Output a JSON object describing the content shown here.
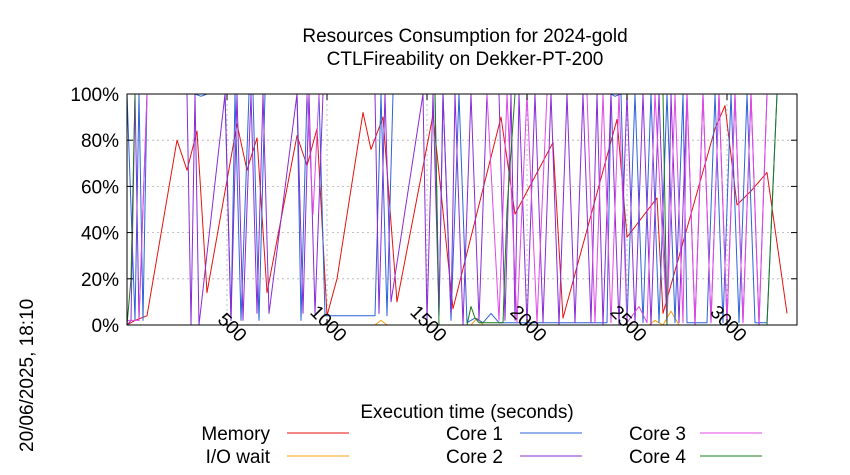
{
  "chart_data": {
    "type": "line",
    "title_line1": "Resources Consumption for 2024-gold",
    "title_line2": "CTLFireability on Dekker-PT-200",
    "xlabel": "Execution time (seconds)",
    "side_label": "20/06/2025, 18:10",
    "xlim": [
      0,
      3350
    ],
    "ylim": [
      0,
      100
    ],
    "x_ticks": [
      500,
      1000,
      1500,
      2000,
      2500,
      3000
    ],
    "x_tick_labels": [
      "500",
      "1000",
      "1500",
      "2000",
      "2500",
      "3000"
    ],
    "y_ticks": [
      0,
      20,
      40,
      60,
      80,
      100
    ],
    "y_tick_labels": [
      "0%",
      "20%",
      "40%",
      "60%",
      "80%",
      "100%"
    ],
    "grid": true,
    "legend_position": "bottom",
    "series": [
      {
        "name": "Memory",
        "color": "#e8120c",
        "x": [
          0,
          40,
          100,
          250,
          300,
          350,
          400,
          550,
          600,
          650,
          700,
          850,
          900,
          950,
          1000,
          1050,
          1180,
          1220,
          1280,
          1350,
          1530,
          1630,
          1870,
          1940,
          2130,
          2180,
          2450,
          2500,
          2650,
          2680,
          2940,
          2990,
          3050,
          3120,
          3200,
          3300
        ],
        "values": [
          0,
          2,
          4,
          80,
          67,
          84,
          14,
          87,
          67,
          81,
          14,
          82,
          69,
          85,
          4,
          20,
          92,
          76,
          90,
          10,
          91,
          7,
          90,
          48,
          79,
          3,
          89,
          38,
          55,
          5,
          85,
          95,
          52,
          58,
          66,
          5
        ]
      },
      {
        "name": "I/O wait",
        "color": "#f5a00a",
        "x": [
          0,
          1240,
          1270,
          1300,
          1500,
          1720,
          1750,
          1780,
          2540,
          2610,
          2640,
          2680,
          2720,
          2760,
          3300
        ],
        "values": [
          0,
          0,
          2,
          0,
          0,
          0,
          3,
          0,
          0,
          0,
          2,
          0,
          6,
          0,
          0
        ]
      },
      {
        "name": "Core 1",
        "color": "#2b63d8",
        "x": [
          0,
          40,
          60,
          80,
          100,
          310,
          340,
          370,
          400,
          490,
          520,
          540,
          570,
          610,
          630,
          660,
          690,
          850,
          870,
          900,
          960,
          990,
          1240,
          1270,
          1300,
          1330,
          1540,
          1560,
          1580,
          1620,
          1660,
          1700,
          1740,
          1780,
          1820,
          1860,
          1900,
          2400,
          2420,
          2440,
          2470,
          2500,
          2540,
          2580,
          2620,
          2660,
          2700,
          2740,
          2780,
          2800,
          2860,
          2900,
          2940,
          2980,
          3020,
          3060,
          3100,
          3140,
          3200,
          3250,
          3300
        ],
        "values": [
          100,
          2,
          100,
          2,
          100,
          100,
          100,
          99,
          100,
          100,
          2,
          100,
          2,
          100,
          100,
          2,
          100,
          100,
          2,
          100,
          100,
          4,
          4,
          100,
          4,
          100,
          100,
          4,
          100,
          2,
          100,
          1,
          3,
          1,
          5,
          1,
          1,
          1,
          100,
          99,
          100,
          1,
          100,
          1,
          100,
          1,
          100,
          1,
          100,
          1,
          1,
          1,
          100,
          1,
          100,
          1,
          100,
          1,
          1,
          100,
          100
        ]
      },
      {
        "name": "Core 2",
        "color": "#8a2bd6",
        "x": [
          0,
          20,
          40,
          60,
          100,
          300,
          320,
          340,
          360,
          490,
          520,
          550,
          580,
          620,
          650,
          680,
          710,
          850,
          880,
          910,
          940,
          980,
          1240,
          1260,
          1290,
          1320,
          1480,
          1500,
          1530,
          1560,
          1580,
          1620,
          1640,
          1680,
          1720,
          1760,
          1800,
          1860,
          1890,
          1920,
          1940,
          1960,
          2000,
          2040,
          2080,
          2120,
          2160,
          2200,
          2240,
          2280,
          2320,
          2350,
          2380,
          2420,
          2460,
          2500,
          2540,
          2580,
          2620,
          2660,
          2700,
          2720,
          2760,
          2800,
          2840,
          2880,
          2920,
          2960,
          3000,
          3040,
          3080,
          3120,
          3160,
          3200,
          3250,
          3300
        ],
        "values": [
          0,
          2,
          100,
          2,
          100,
          100,
          0,
          100,
          0,
          100,
          2,
          100,
          2,
          100,
          5,
          100,
          5,
          100,
          5,
          100,
          5,
          100,
          100,
          5,
          100,
          10,
          100,
          2,
          100,
          5,
          100,
          5,
          100,
          0,
          100,
          2,
          100,
          100,
          2,
          100,
          2,
          100,
          0,
          100,
          1,
          100,
          0,
          100,
          1,
          100,
          1,
          100,
          0,
          100,
          0,
          100,
          1,
          100,
          0,
          100,
          0,
          100,
          1,
          100,
          0,
          100,
          1,
          100,
          1,
          100,
          1,
          100,
          0,
          100,
          100,
          100
        ]
      },
      {
        "name": "Core 3",
        "color": "#e048e6",
        "x": [
          0,
          60,
          100,
          300,
          340,
          380,
          900,
          930,
          960,
          1500,
          1540,
          1580,
          1640,
          1700,
          1740,
          1800,
          1860,
          1900,
          1950,
          2000,
          2050,
          2100,
          2300,
          2340,
          2380,
          2420,
          2460,
          2500,
          2560,
          2600,
          2640,
          2700,
          2740,
          2780,
          2800,
          2840,
          2880,
          2920,
          2960,
          3000,
          3040,
          3080,
          3120,
          3160,
          3200,
          3240,
          3300
        ],
        "values": [
          2,
          2,
          100,
          100,
          100,
          100,
          100,
          48,
          100,
          100,
          100,
          100,
          100,
          100,
          100,
          100,
          2,
          100,
          1,
          100,
          1,
          100,
          100,
          1,
          100,
          1,
          100,
          1,
          8,
          1,
          100,
          1,
          100,
          1,
          100,
          1,
          100,
          1,
          100,
          1,
          100,
          1,
          100,
          1,
          100,
          100,
          100
        ]
      },
      {
        "name": "Core 4",
        "color": "#1a7a1a",
        "x": [
          0,
          20,
          40,
          60,
          1540,
          1560,
          1700,
          1720,
          1740,
          1760,
          1800,
          1850,
          1880,
          1900,
          1940,
          2440,
          2450,
          2680,
          2700,
          2720,
          3160,
          3200,
          3250,
          3300
        ],
        "values": [
          0,
          20,
          100,
          100,
          100,
          0,
          0,
          8,
          3,
          1,
          1,
          1,
          1,
          50,
          100,
          100,
          100,
          100,
          0,
          0,
          0,
          0,
          100,
          100
        ]
      }
    ]
  }
}
